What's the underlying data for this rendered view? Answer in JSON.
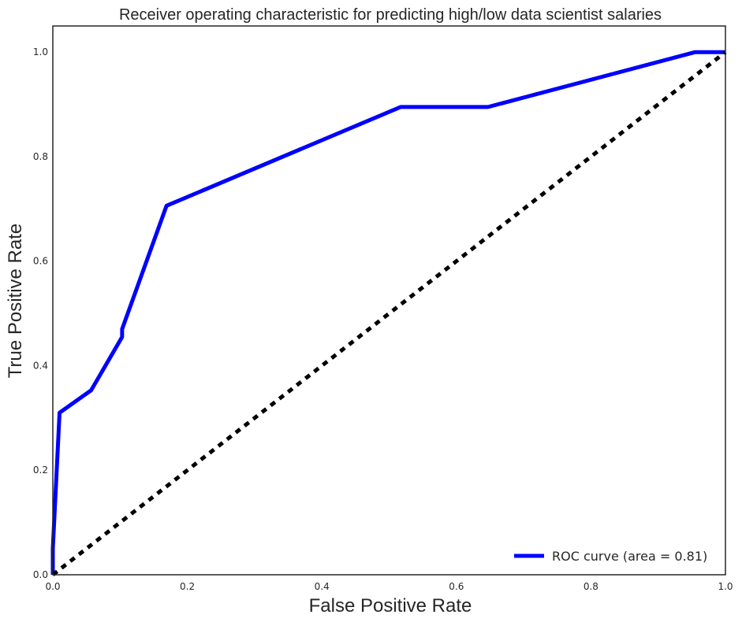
{
  "chart_data": {
    "type": "line",
    "title": "Receiver operating characteristic for predicting high/low data scientist salaries",
    "xlabel": "False Positive Rate",
    "ylabel": "True Positive Rate",
    "xlim": [
      0.0,
      1.0
    ],
    "ylim": [
      0.0,
      1.05
    ],
    "x_ticks": [
      "0.0",
      "0.2",
      "0.4",
      "0.6",
      "0.8",
      "1.0"
    ],
    "y_ticks": [
      "0.0",
      "0.2",
      "0.4",
      "0.6",
      "0.8",
      "1.0"
    ],
    "grid": false,
    "legend_position": "lower-right",
    "series": [
      {
        "name": "ROC curve (area = 0.81)",
        "color": "#0000ff",
        "style": "solid",
        "x": [
          0.0,
          0.0,
          0.01,
          0.01,
          0.057,
          0.103,
          0.103,
          0.169,
          0.517,
          0.647,
          0.955,
          1.0
        ],
        "y": [
          0.0,
          0.05,
          0.31,
          0.31,
          0.353,
          0.455,
          0.47,
          0.706,
          0.895,
          0.895,
          1.0,
          1.0
        ]
      },
      {
        "color": "#000000",
        "style": "dashed",
        "x": [
          0.0,
          1.0
        ],
        "y": [
          0.0,
          1.0
        ]
      }
    ]
  }
}
